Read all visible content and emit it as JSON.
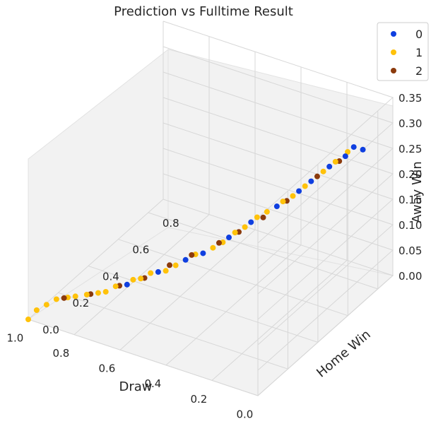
{
  "chart_data": {
    "type": "scatter",
    "title": "Prediction vs Fulltime Result",
    "xlabel": "Draw",
    "ylabel": "Home Win",
    "zlabel": "Away Win",
    "xlim": [
      0,
      1
    ],
    "ylim": [
      0,
      0.9
    ],
    "zlim": [
      0,
      0.35
    ],
    "x_ticks": [
      "0.0",
      "0.2",
      "0.4",
      "0.6",
      "0.8",
      "1.0"
    ],
    "y_ticks": [
      "0.0",
      "0.2",
      "0.4",
      "0.6",
      "0.8"
    ],
    "z_ticks": [
      "0.00",
      "0.05",
      "0.10",
      "0.15",
      "0.20",
      "0.25",
      "0.30",
      "0.35"
    ],
    "grid": true,
    "legend_position": "top-right",
    "series": [
      {
        "name": "0",
        "color": "#0f3fe0",
        "points": [
          {
            "x": 0.0,
            "y": 0.7,
            "z": 0.3
          },
          {
            "x": 0.02,
            "y": 0.67,
            "z": 0.31
          },
          {
            "x": 0.05,
            "y": 0.66,
            "z": 0.29
          },
          {
            "x": 0.1,
            "y": 0.63,
            "z": 0.27
          },
          {
            "x": 0.16,
            "y": 0.6,
            "z": 0.24
          },
          {
            "x": 0.2,
            "y": 0.58,
            "z": 0.22
          },
          {
            "x": 0.27,
            "y": 0.54,
            "z": 0.19
          },
          {
            "x": 0.35,
            "y": 0.49,
            "z": 0.16
          },
          {
            "x": 0.42,
            "y": 0.45,
            "z": 0.13
          },
          {
            "x": 0.5,
            "y": 0.4,
            "z": 0.1
          },
          {
            "x": 0.55,
            "y": 0.36,
            "z": 0.09
          },
          {
            "x": 0.63,
            "y": 0.3,
            "z": 0.07
          },
          {
            "x": 0.72,
            "y": 0.23,
            "z": 0.05
          }
        ]
      },
      {
        "name": "1",
        "color": "#ffc20a",
        "points": [
          {
            "x": 0.04,
            "y": 0.66,
            "z": 0.3
          },
          {
            "x": 0.08,
            "y": 0.64,
            "z": 0.28
          },
          {
            "x": 0.12,
            "y": 0.62,
            "z": 0.26
          },
          {
            "x": 0.18,
            "y": 0.59,
            "z": 0.23
          },
          {
            "x": 0.22,
            "y": 0.57,
            "z": 0.21
          },
          {
            "x": 0.25,
            "y": 0.55,
            "z": 0.2
          },
          {
            "x": 0.3,
            "y": 0.52,
            "z": 0.18
          },
          {
            "x": 0.33,
            "y": 0.5,
            "z": 0.17
          },
          {
            "x": 0.37,
            "y": 0.48,
            "z": 0.15
          },
          {
            "x": 0.4,
            "y": 0.46,
            "z": 0.14
          },
          {
            "x": 0.44,
            "y": 0.44,
            "z": 0.12
          },
          {
            "x": 0.47,
            "y": 0.42,
            "z": 0.11
          },
          {
            "x": 0.52,
            "y": 0.38,
            "z": 0.1
          },
          {
            "x": 0.58,
            "y": 0.34,
            "z": 0.08
          },
          {
            "x": 0.61,
            "y": 0.32,
            "z": 0.07
          },
          {
            "x": 0.65,
            "y": 0.28,
            "z": 0.07
          },
          {
            "x": 0.68,
            "y": 0.26,
            "z": 0.06
          },
          {
            "x": 0.7,
            "y": 0.24,
            "z": 0.06
          },
          {
            "x": 0.75,
            "y": 0.2,
            "z": 0.05
          },
          {
            "x": 0.78,
            "y": 0.18,
            "z": 0.04
          },
          {
            "x": 0.8,
            "y": 0.16,
            "z": 0.04
          },
          {
            "x": 0.83,
            "y": 0.13,
            "z": 0.04
          },
          {
            "x": 0.86,
            "y": 0.1,
            "z": 0.04
          },
          {
            "x": 0.88,
            "y": 0.08,
            "z": 0.04
          },
          {
            "x": 0.91,
            "y": 0.05,
            "z": 0.04
          },
          {
            "x": 0.94,
            "y": 0.03,
            "z": 0.03
          },
          {
            "x": 0.97,
            "y": 0.01,
            "z": 0.02
          },
          {
            "x": 1.0,
            "y": 0.0,
            "z": 0.0
          }
        ]
      },
      {
        "name": "2",
        "color": "#8b3a0c",
        "points": [
          {
            "x": 0.07,
            "y": 0.65,
            "z": 0.28
          },
          {
            "x": 0.14,
            "y": 0.61,
            "z": 0.25
          },
          {
            "x": 0.24,
            "y": 0.56,
            "z": 0.2
          },
          {
            "x": 0.31,
            "y": 0.51,
            "z": 0.17
          },
          {
            "x": 0.39,
            "y": 0.47,
            "z": 0.14
          },
          {
            "x": 0.45,
            "y": 0.43,
            "z": 0.12
          },
          {
            "x": 0.53,
            "y": 0.37,
            "z": 0.1
          },
          {
            "x": 0.6,
            "y": 0.33,
            "z": 0.08
          },
          {
            "x": 0.67,
            "y": 0.27,
            "z": 0.06
          },
          {
            "x": 0.74,
            "y": 0.21,
            "z": 0.05
          },
          {
            "x": 0.82,
            "y": 0.14,
            "z": 0.04
          },
          {
            "x": 0.89,
            "y": 0.07,
            "z": 0.04
          }
        ]
      }
    ]
  }
}
